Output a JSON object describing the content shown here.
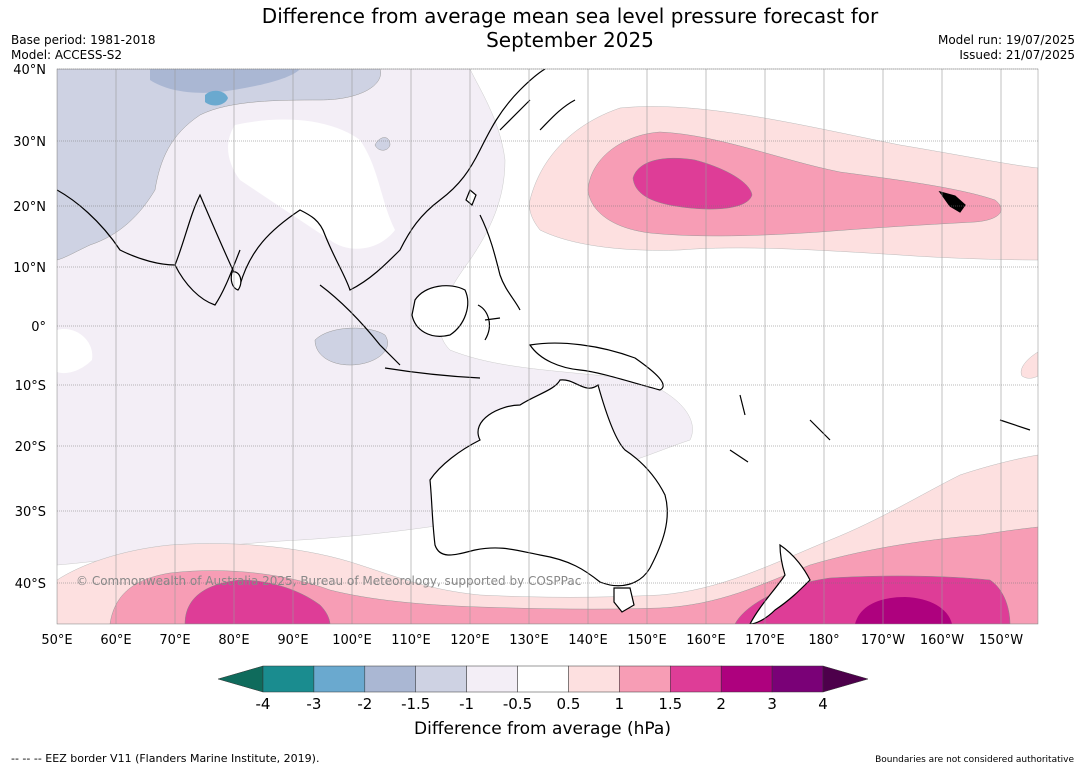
{
  "title_line1": "Difference from average mean sea level pressure forecast for",
  "title_line2": "September 2025",
  "base_period": "Base period: 1981-2018",
  "model": "Model: ACCESS-S2",
  "model_run": "Model run: 19/07/2025",
  "issued": "Issued: 21/07/2025",
  "copyright": "© Commonwealth of Australia 2025, Bureau of Meteorology, supported by COSPPac",
  "lat_labels": [
    "40°N",
    "30°N",
    "20°N",
    "10°N",
    "0°",
    "10°S",
    "20°S",
    "30°S",
    "40°S"
  ],
  "lon_labels": [
    "50°E",
    "60°E",
    "70°E",
    "80°E",
    "90°E",
    "100°E",
    "110°E",
    "120°E",
    "130°E",
    "140°E",
    "150°E",
    "160°E",
    "170°E",
    "180°",
    "170°W",
    "160°W",
    "150°W"
  ],
  "colorbar": {
    "ticks": [
      "-4",
      "-3",
      "-2",
      "-1.5",
      "-1",
      "-0.5",
      "0.5",
      "1",
      "1.5",
      "2",
      "3",
      "4"
    ],
    "colors": [
      "#1a8c8f",
      "#6aa9cf",
      "#aab7d3",
      "#ced2e3",
      "#f3eef6",
      "#ffffff",
      "#fde0e0",
      "#f79db5",
      "#de3d97",
      "#ae017e",
      "#7a0177"
    ],
    "under_color": "#0f6b5c",
    "over_color": "#4d004b",
    "label": "Difference from average (hPa)"
  },
  "footer_left": "--  --  -- EEZ border V11 (Flanders Marine Institute, 2019).",
  "footer_right": "Boundaries are not considered authoritative"
}
